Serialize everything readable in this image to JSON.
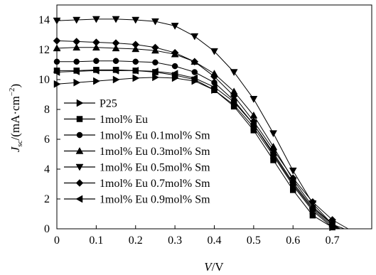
{
  "chart_data": {
    "type": "line",
    "xlabel": "V/V",
    "ylabel": "Jsc/(mA·cm−2)",
    "xlabel_parts": {
      "italic": "V",
      "rest": "/V"
    },
    "ylabel_parts": {
      "italic": "J",
      "sub": "sc",
      "rest": "/(mA·cm",
      "sup": "−2",
      "close": ")"
    },
    "xlim": [
      0,
      0.8
    ],
    "ylim": [
      0,
      15
    ],
    "xticks": [
      "0",
      "0.1",
      "0.2",
      "0.3",
      "0.4",
      "0.5",
      "0.6",
      "0.7"
    ],
    "yticks": [
      "0",
      "2",
      "4",
      "6",
      "8",
      "10",
      "12",
      "14"
    ],
    "grid": false,
    "legend_position": "lower-left",
    "series": [
      {
        "name": "P25",
        "marker": "triangle-right",
        "x": [
          0,
          0.05,
          0.1,
          0.15,
          0.2,
          0.25,
          0.3,
          0.35,
          0.4,
          0.45,
          0.5,
          0.55,
          0.6,
          0.65,
          0.7,
          0.72
        ],
        "y": [
          9.7,
          9.8,
          9.9,
          10.0,
          10.1,
          10.15,
          10.1,
          9.9,
          9.3,
          8.3,
          6.8,
          4.9,
          2.9,
          1.2,
          0.1,
          0
        ]
      },
      {
        "name": "1mol% Eu",
        "marker": "square",
        "x": [
          0,
          0.05,
          0.1,
          0.15,
          0.2,
          0.25,
          0.3,
          0.35,
          0.4,
          0.45,
          0.5,
          0.55,
          0.6,
          0.65,
          0.7,
          0.71
        ],
        "y": [
          10.6,
          10.6,
          10.65,
          10.65,
          10.6,
          10.5,
          10.3,
          10.0,
          9.3,
          8.2,
          6.6,
          4.6,
          2.6,
          0.9,
          0.1,
          0
        ]
      },
      {
        "name": "1mol% Eu 0.1mol% Sm",
        "marker": "circle",
        "x": [
          0,
          0.05,
          0.1,
          0.15,
          0.2,
          0.25,
          0.3,
          0.35,
          0.4,
          0.45,
          0.5,
          0.55,
          0.6,
          0.65,
          0.7,
          0.72
        ],
        "y": [
          11.2,
          11.2,
          11.25,
          11.25,
          11.2,
          11.15,
          10.9,
          10.5,
          9.8,
          8.6,
          7.0,
          5.0,
          3.0,
          1.3,
          0.2,
          0
        ]
      },
      {
        "name": "1mol% Eu 0.3mol% Sm",
        "marker": "triangle-up",
        "x": [
          0,
          0.05,
          0.1,
          0.15,
          0.2,
          0.25,
          0.3,
          0.35,
          0.4,
          0.45,
          0.5,
          0.55,
          0.6,
          0.65,
          0.7,
          0.72
        ],
        "y": [
          12.1,
          12.15,
          12.15,
          12.1,
          12.05,
          11.95,
          11.7,
          11.2,
          10.4,
          9.2,
          7.6,
          5.5,
          3.3,
          1.5,
          0.3,
          0
        ]
      },
      {
        "name": "1mol% Eu 0.5mol% Sm",
        "marker": "triangle-down",
        "x": [
          0,
          0.05,
          0.1,
          0.15,
          0.2,
          0.25,
          0.3,
          0.35,
          0.4,
          0.45,
          0.5,
          0.55,
          0.6,
          0.65,
          0.7,
          0.72
        ],
        "y": [
          13.95,
          14.0,
          14.05,
          14.05,
          14.0,
          13.9,
          13.6,
          12.9,
          11.9,
          10.5,
          8.7,
          6.4,
          3.9,
          1.7,
          0.3,
          0
        ]
      },
      {
        "name": "1mol% Eu 0.7mol% Sm",
        "marker": "diamond",
        "x": [
          0,
          0.05,
          0.1,
          0.15,
          0.2,
          0.25,
          0.3,
          0.35,
          0.4,
          0.45,
          0.5,
          0.55,
          0.6,
          0.65,
          0.7,
          0.74
        ],
        "y": [
          12.6,
          12.55,
          12.5,
          12.45,
          12.35,
          12.15,
          11.8,
          11.2,
          10.2,
          8.9,
          7.2,
          5.3,
          3.4,
          1.8,
          0.6,
          0
        ]
      },
      {
        "name": "1mol% Eu 0.9mol% Sm",
        "marker": "triangle-left",
        "x": [
          0,
          0.05,
          0.1,
          0.15,
          0.2,
          0.25,
          0.3,
          0.35,
          0.4,
          0.45,
          0.5,
          0.55,
          0.6,
          0.65,
          0.7,
          0.73
        ],
        "y": [
          10.5,
          10.55,
          10.6,
          10.6,
          10.6,
          10.55,
          10.4,
          10.1,
          9.5,
          8.5,
          7.0,
          5.1,
          3.1,
          1.4,
          0.3,
          0
        ]
      }
    ]
  }
}
